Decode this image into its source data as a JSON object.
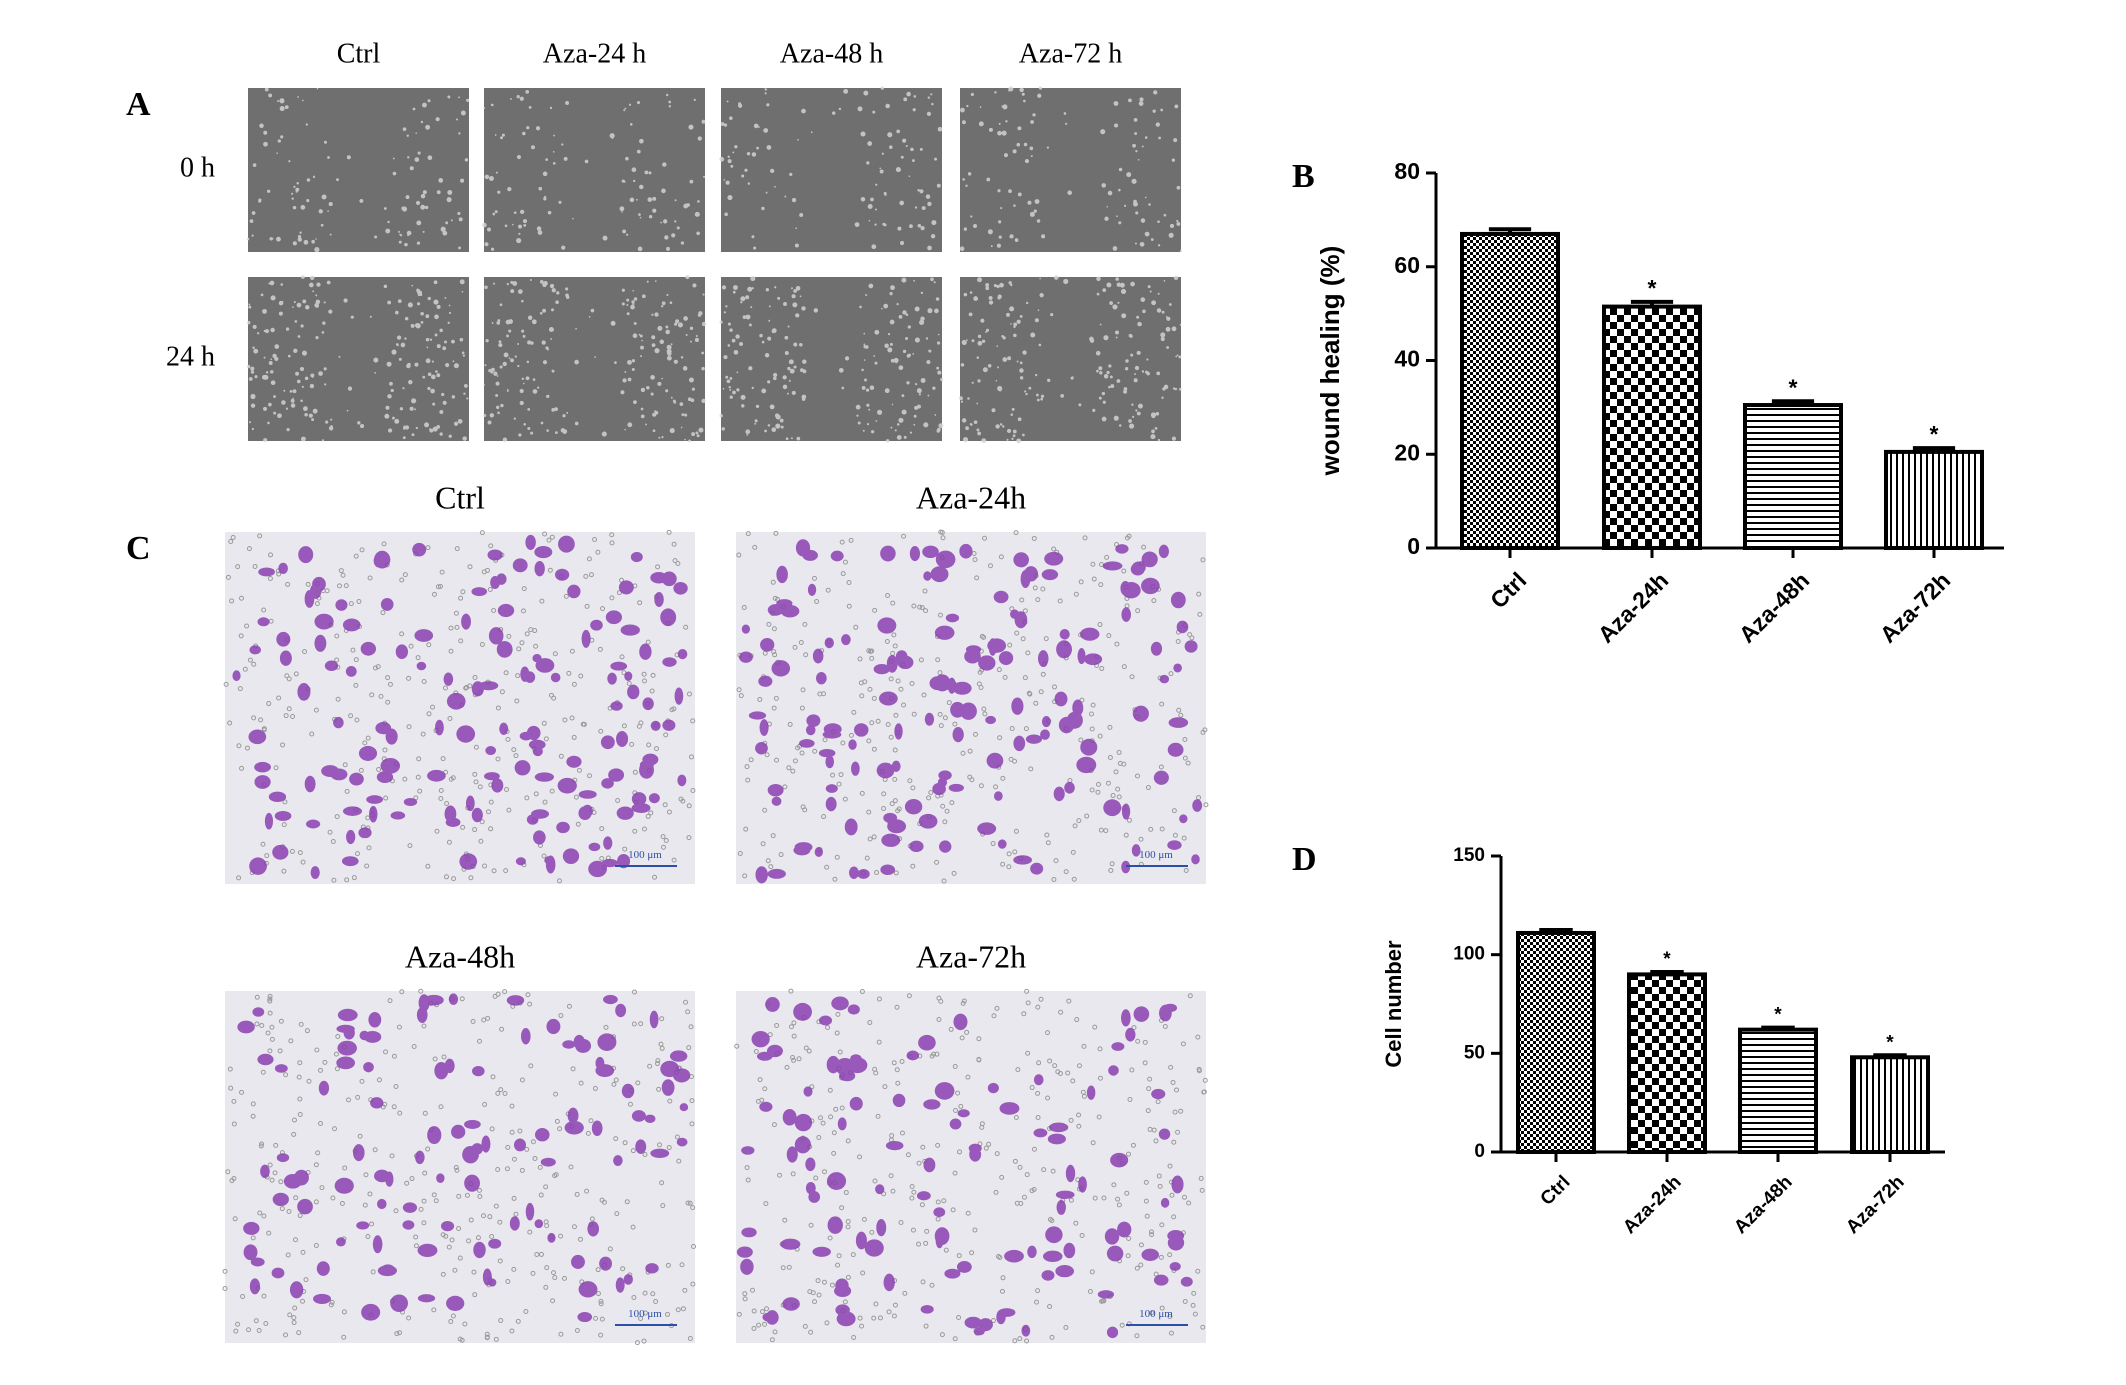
{
  "panel_labels": [
    "A",
    "B",
    "C",
    "D"
  ],
  "wound_images": {
    "columns": [
      "Ctrl",
      "Aza-24 h",
      "Aza-48 h",
      "Aza-72 h"
    ],
    "rows": [
      "0 h",
      "24 h"
    ]
  },
  "transwell_images": {
    "titles": [
      "Ctrl",
      "Aza-24h",
      "Aza-48h",
      "Aza-72h"
    ],
    "scale_bar": "100 μm"
  },
  "chart_data": [
    {
      "type": "bar",
      "ylabel": "wound healing (%)",
      "categories": [
        "Ctrl",
        "Aza-24h",
        "Aza-48h",
        "Aza-72h"
      ],
      "values": [
        67,
        51.5,
        30.5,
        20.5
      ],
      "errors": [
        1,
        1,
        0.8,
        0.8
      ],
      "annotations": [
        null,
        "*",
        "*",
        "*"
      ],
      "color": "#000000",
      "ylim": [
        0,
        80
      ],
      "yticks": [
        0,
        20,
        40,
        60,
        80
      ]
    },
    {
      "type": "bar",
      "ylabel": "Cell number",
      "categories": [
        "Ctrl",
        "Aza-24h",
        "Aza-48h",
        "Aza-72h"
      ],
      "values": [
        111,
        90,
        62,
        48
      ],
      "errors": [
        1.5,
        1.2,
        1,
        1
      ],
      "annotations": [
        null,
        "*",
        "*",
        "*"
      ],
      "color": "#000000",
      "ylim": [
        0,
        150
      ],
      "yticks": [
        0,
        50,
        100,
        150
      ]
    }
  ]
}
